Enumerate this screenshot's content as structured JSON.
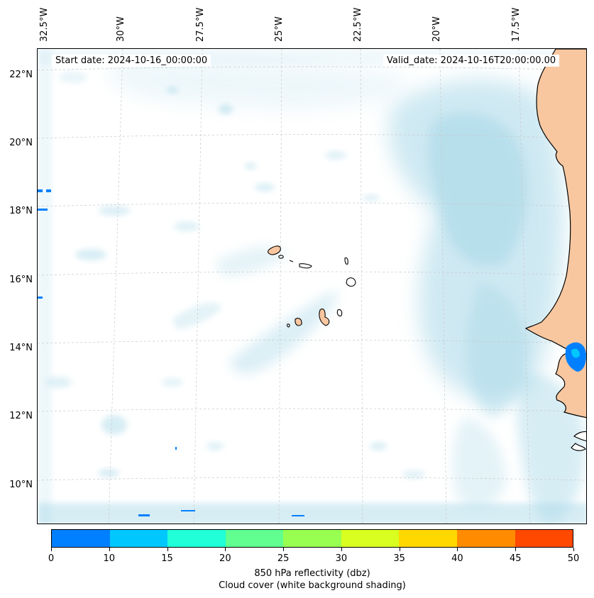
{
  "map": {
    "start_date": "Start date: 2024-10-16_00:00:00",
    "valid_date": "Valid_date: 2024-10-16T20:00:00.00",
    "lon_labels": [
      "32.5°W",
      "30°W",
      "27.5°W",
      "25°W",
      "22.5°W",
      "20°W",
      "17.5°W"
    ],
    "lat_labels": [
      "22°N",
      "20°N",
      "18°N",
      "16°N",
      "14°N",
      "12°N",
      "10°N"
    ],
    "land_color": "#f8c7a0",
    "cloud_color": "#a8d8e8",
    "coast_color": "#000000"
  },
  "colorbar": {
    "colors": [
      "#0080ff",
      "#00c8ff",
      "#20ffd8",
      "#60ff90",
      "#98ff50",
      "#d8ff20",
      "#ffd800",
      "#ff8c00",
      "#ff4800"
    ],
    "ticks": [
      "0",
      "10",
      "15",
      "20",
      "25",
      "30",
      "35",
      "40",
      "45",
      "50"
    ],
    "label_line1": "850 hPa reflectivity (dbz)",
    "label_line2": "Cloud cover (white background shading)"
  }
}
